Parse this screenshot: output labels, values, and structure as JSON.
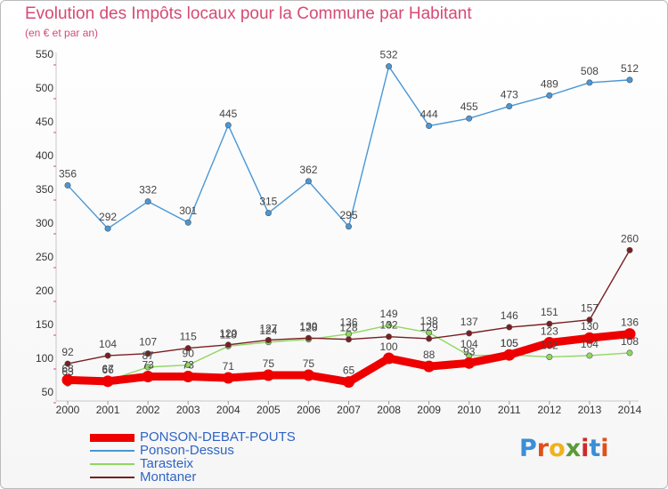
{
  "header": {
    "title": "Evolution des Impôts locaux pour la Commune par Habitant",
    "subtitle": "(en € et par an)"
  },
  "logo": {
    "text": "Proxiti",
    "colors": [
      "#3a8fd6",
      "#e0501a",
      "#f0b21c",
      "#5a9a3a",
      "#cc2b2b",
      "#3a8fd6",
      "#e0501a"
    ]
  },
  "chart_data": {
    "type": "line",
    "title": "Evolution des Impôts locaux pour la Commune par Habitant",
    "subtitle": "(en € et par an)",
    "xlabel": "",
    "ylabel": "",
    "x": [
      "2000",
      "2001",
      "2002",
      "2003",
      "2004",
      "2005",
      "2006",
      "2007",
      "2008",
      "2009",
      "2010",
      "2011",
      "2012",
      "2013",
      "2014"
    ],
    "ylim": [
      50,
      550
    ],
    "yticks": [
      50,
      100,
      150,
      200,
      250,
      300,
      350,
      400,
      450,
      500,
      550
    ],
    "grid": false,
    "legend_position": "bottom-left",
    "series": [
      {
        "name": "PONSON-DEBAT-POUTS",
        "color": "#ee0000",
        "values": [
          68,
          66,
          73,
          73,
          71,
          75,
          75,
          65,
          100,
          88,
          93,
          105,
          123,
          130,
          136
        ],
        "labels": [
          "68",
          "66",
          "73",
          "73",
          "71",
          "75",
          "75",
          "65",
          "100",
          "88",
          "93",
          "105",
          "123",
          "130",
          "136"
        ]
      },
      {
        "name": "Ponson-Dessus",
        "color": "#4a97d6",
        "values": [
          356,
          292,
          332,
          301,
          445,
          315,
          362,
          295,
          532,
          444,
          455,
          473,
          489,
          508,
          512
        ],
        "labels": [
          "356",
          "292",
          "332",
          "301",
          "445",
          "315",
          "362",
          "295",
          "532",
          "444",
          "455",
          "473",
          "489",
          "508",
          "512"
        ]
      },
      {
        "name": "Tarasteix",
        "color": "#8fd860",
        "values": [
          63,
          67,
          87,
          90,
          118,
          124,
          128,
          136,
          149,
          138,
          104,
          105,
          102,
          104,
          108
        ],
        "labels": [
          "63",
          "67",
          "87",
          "90",
          "118",
          "124",
          "128",
          "136",
          "149",
          "138",
          "104",
          "105",
          "102",
          "104",
          "108"
        ]
      },
      {
        "name": "Montaner",
        "color": "#7a1e22",
        "values": [
          92,
          104,
          107,
          115,
          120,
          127,
          130,
          128,
          132,
          129,
          137,
          146,
          151,
          157,
          260
        ],
        "labels": [
          "92",
          "104",
          "107",
          "115",
          "120",
          "127",
          "130",
          "128",
          "132",
          "129",
          "137",
          "146",
          "151",
          "157",
          "260"
        ]
      }
    ]
  }
}
